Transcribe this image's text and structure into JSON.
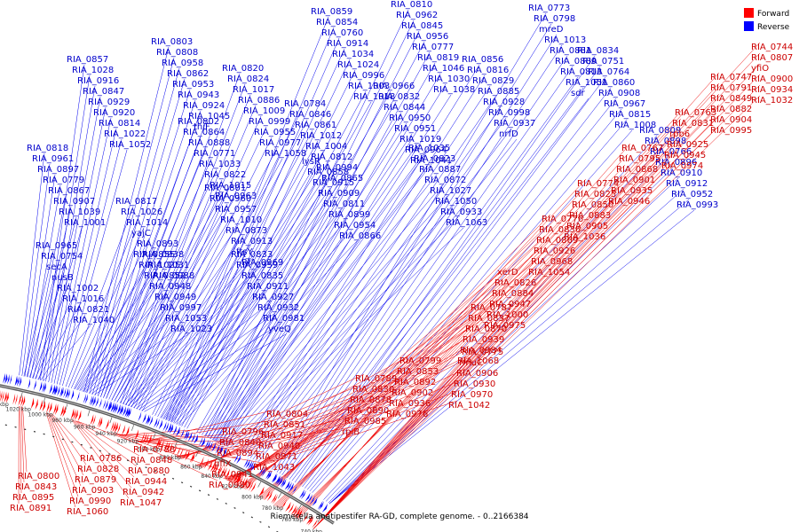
{
  "title": "Riemerella anatipestifer RA-GD, complete genome. - 0..2166384",
  "legend": {
    "forward_label": "Forward",
    "reverse_label": "Reverse",
    "forward_color": "#ff0000",
    "reverse_color": "#0000ff"
  },
  "ticks": [
    "740 kbp",
    "760 kbp",
    "780 kbp",
    "800 kbp",
    "820 kbp",
    "840 kbp",
    "860 kbp",
    "880 kbp",
    "900 kbp",
    "920 kbp",
    "940 kbp",
    "960 kbp",
    "980 kbp",
    "1000 kbp",
    "1020 kbp",
    "1040 kbp"
  ],
  "forward_labels": [
    "RIA_0744",
    "RIA_0747",
    "RIA_0763",
    "RIA_0767",
    "RIA_0774",
    "RIA_0776",
    "xerD",
    "RIA_0787",
    "RIA_0775",
    "RIA_0799",
    "RIA_0789",
    "RIA_0804",
    "RIA_0796",
    "RIA_0786",
    "RIA_0800",
    "RIA_0788",
    "RIA_0807",
    "RIA_0791",
    "RIA_0831",
    "RIA_0795",
    "RIA_0825",
    "RIA_0836",
    "RIA_0826",
    "RIA_0837",
    "rmuC",
    "RIA_0853",
    "RIA_0830",
    "RIA_0851",
    "RIA_0840",
    "RIA_0828",
    "RIA_0843",
    "RIA_0848",
    "yfiO",
    "RIA_0849",
    "rpb6",
    "RIA_0868",
    "RIA_0850",
    "RIA_0869",
    "RIA_0884",
    "RIA_0870",
    "RIA_0906",
    "RIA_0892",
    "RIA_0878",
    "RIA_0917",
    "RIA_0894",
    "RIA_0879",
    "RIA_0895",
    "RIA_0880",
    "RIA_0900",
    "RIA_0882",
    "RIA_0925",
    "RIA_0901",
    "RIA_0883",
    "RIA_0926",
    "RIA_0947",
    "RIA_0939",
    "RIA_0930",
    "RIA_0902",
    "RIA_0890",
    "RIA_0940",
    "hflX",
    "RIA_0903",
    "RIA_0891",
    "RIA_0944",
    "RIA_0934",
    "RIA_0904",
    "RIA_0945",
    "RIA_0935",
    "RIA_0905",
    "RIA_0968",
    "RIA_1000",
    "RIA_0984",
    "RIA_0970",
    "RIA_0936",
    "RIA_0985",
    "RIA_0971",
    "RIA_0941",
    "RIA_0990",
    "RIA_0973",
    "RIA_0942",
    "RIA_1032",
    "RIA_0995",
    "RIA_0974",
    "RIA_0946",
    "RIA_1036",
    "RIA_1054",
    "RIA_0975",
    "RIA_1068",
    "RIA_1042",
    "RIA_0976",
    "rpiB",
    "RIA_1043",
    "RIA_0980",
    "RIA_1060",
    "RIA_1044",
    "RIA_1047"
  ],
  "reverse_labels": [
    "RIA_0773",
    "RIA_0810",
    "RIA_0859",
    "RIA_0820",
    "RIA_0803",
    "RIA_0857",
    "RIA_0818",
    "RIA_0802",
    "RIA_0784",
    "RIA_0966",
    "RIA_0856",
    "RIA_0834",
    "RIA_0817",
    "RIA_0801",
    "lysR",
    "RIA_1035",
    "RIA_0965",
    "RIA_0855",
    "RIA_0833",
    "RIA_0809",
    "RIA_0798",
    "RIA_0962",
    "RIA_0854",
    "RIA_0824",
    "RIA_0808",
    "RIA_1028",
    "RIA_0961",
    "RIA_0864",
    "RIA_0846",
    "RIA_0832",
    "RIA_0816",
    "RIA_0751",
    "RIA_1026",
    "RIA_0960",
    "RIA_0858",
    "RIA_0823",
    "RIA_0754",
    "RIA_1025",
    "RIA_0959",
    "RIA_0898",
    "mreD",
    "RIA_0845",
    "RIA_0760",
    "RIA_1017",
    "RIA_0958",
    "RIA_0916",
    "RIA_0897",
    "RIA_0888",
    "RIA_0861",
    "RIA_0844",
    "RIA_0829",
    "RIA_0764",
    "RIA_1014",
    "RIA_0957",
    "RIA_0915",
    "RIA_0887",
    "secA",
    "RIA_0852",
    "RIA_0835",
    "RIA_0766",
    "RIA_1013",
    "RIA_0956",
    "RIA_0914",
    "RIA_0886",
    "RIA_0862",
    "RIA_0847",
    "RIA_0779",
    "RIA_0771",
    "RIA_1012",
    "RIA_0950",
    "RIA_0885",
    "RIA_0860",
    "yajC",
    "RIA_1010",
    "RIA_0909",
    "RIA_0872",
    "nusB",
    "RIA_0948",
    "RIA_0911",
    "RIA_0896",
    "RIA_0881",
    "RIA_0777",
    "RIA_1034",
    "RIA_1009",
    "RIA_0953",
    "RIA_0929",
    "RIA_0867",
    "RIA_1033",
    "RIA_1004",
    "RIA_0951",
    "RIA_0928",
    "RIA_0908",
    "RIA_0893",
    "RIA_0873",
    "RIA_0811",
    "RIA_1027",
    "RIA_1002",
    "RIA_0949",
    "RIA_0927",
    "RIA_0910",
    "RIA_0889",
    "RIA_0819",
    "RIA_1024",
    "RIA_0999",
    "RIA_0943",
    "RIA_0920",
    "RIA_0907",
    "RIA_0822",
    "RIA_0812",
    "RIA_1019",
    "RIA_0998",
    "RIA_0967",
    "RIA_0938",
    "RIA_0913",
    "RIA_0899",
    "RIA_1050",
    "RIA_1016",
    "RIA_0997",
    "RIA_0932",
    "RIA_0912",
    "RIA_0813",
    "RIA_1046",
    "RIA_0996",
    "RIA_0955",
    "RIA_0924",
    "RIA_0814",
    "RIA_1039",
    "RIA_1015",
    "RIA_0994",
    "RIA_0964",
    "RIA_0937",
    "RIA_0815",
    "RIA_1031",
    "ftsY",
    "RIA_0954",
    "RIA_0933",
    "RIA_0821",
    "RIA_1053",
    "RIA_0981",
    "RIA_0952",
    "RIA_1051",
    "RIA_1030",
    "RIA_1003",
    "RIA_0977",
    "RIA_1045",
    "RIA_1022",
    "RIA_1001",
    "RIA_0963",
    "RIA_0865",
    "RIA_1041",
    "nrfD",
    "RIA_1008",
    "RIA_0988",
    "RIA_0969",
    "RIA_0866",
    "RIA_1063",
    "RIA_1040",
    "RIA_1023",
    "yveQ",
    "RIA_0993",
    "sdr",
    "RIA_1038",
    "RIA_1018",
    "RIA_1058",
    "thiF",
    "RIA_1052"
  ]
}
